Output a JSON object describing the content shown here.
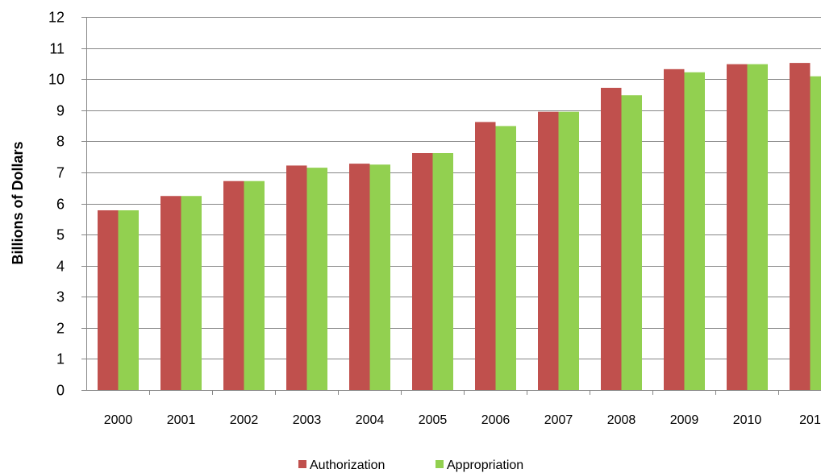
{
  "chart_data": {
    "type": "bar",
    "categories": [
      "2000",
      "2001",
      "2002",
      "2003",
      "2004",
      "2005",
      "2006",
      "2007",
      "2008",
      "2009",
      "2010",
      "201"
    ],
    "series": [
      {
        "name": "Authorization",
        "color": "#c0504d",
        "values": [
          5.78,
          6.24,
          6.72,
          7.22,
          7.28,
          7.62,
          8.62,
          8.95,
          9.72,
          10.32,
          10.48,
          10.52
        ]
      },
      {
        "name": "Appropriation",
        "color": "#92d050",
        "values": [
          5.78,
          6.24,
          6.72,
          7.15,
          7.25,
          7.62,
          8.49,
          8.95,
          9.48,
          10.22,
          10.48,
          10.09
        ]
      }
    ],
    "ylabel": "Billions of Dollars",
    "ylim": [
      0,
      12
    ],
    "yticks": [
      0,
      1,
      2,
      3,
      4,
      5,
      6,
      7,
      8,
      9,
      10,
      11,
      12
    ],
    "grid": true,
    "legend_position": "bottom-center",
    "gridline_color": "#868686"
  }
}
